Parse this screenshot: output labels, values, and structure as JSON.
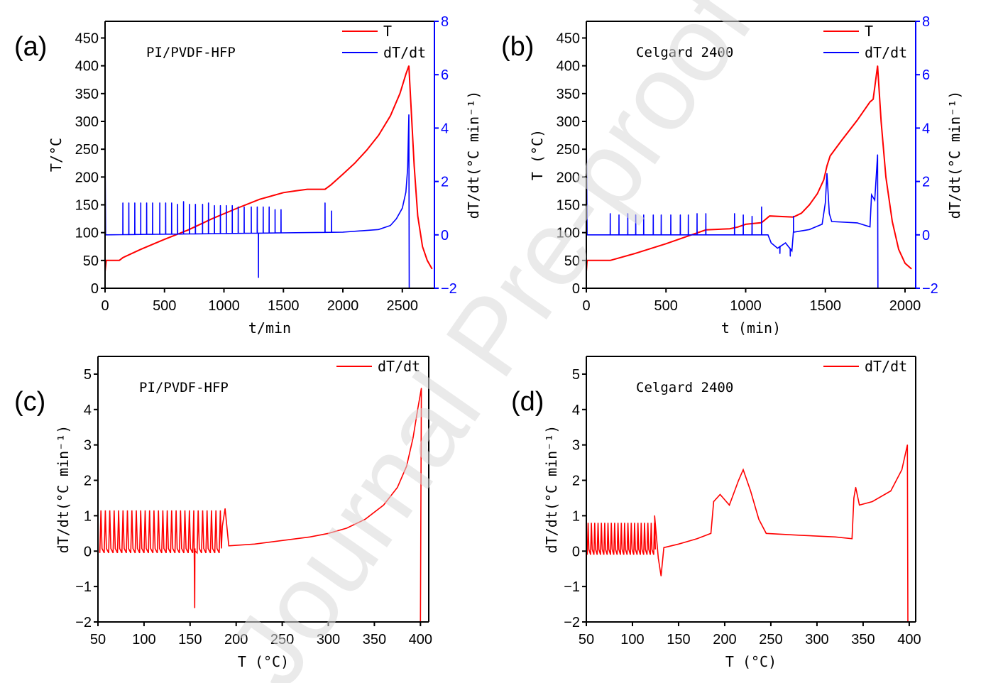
{
  "watermark": "Journal Pre-proof",
  "colors": {
    "T": "#ff0000",
    "dTdt": "#0000ff",
    "axis": "#000000",
    "watermark": "#d9d9d9"
  },
  "chart_data": [
    {
      "panel": "(a)",
      "type": "line",
      "annotation": "PI/PVDF-HFP",
      "xlabel": "t/min",
      "ylabel": "T/°C",
      "y2label": "dT/dt(°C min⁻¹)",
      "xlim": [
        0,
        2770
      ],
      "ylim": [
        0,
        480
      ],
      "y2lim": [
        -2,
        8
      ],
      "xticks": [
        0,
        500,
        1000,
        1500,
        2000,
        2500
      ],
      "yticks": [
        0,
        50,
        100,
        150,
        200,
        250,
        300,
        350,
        400,
        450
      ],
      "y2ticks": [
        -2,
        0,
        2,
        4,
        6,
        8
      ],
      "legend": {
        "position": "top-right",
        "entries": [
          "T",
          "dT/dt"
        ]
      },
      "series": [
        {
          "name": "T",
          "axis": "left",
          "color": "#ff0000",
          "points": [
            [
              0,
              30
            ],
            [
              10,
              50
            ],
            [
              120,
              50
            ],
            [
              150,
              55
            ],
            [
              300,
              70
            ],
            [
              500,
              88
            ],
            [
              700,
              105
            ],
            [
              900,
              125
            ],
            [
              1100,
              143
            ],
            [
              1300,
              160
            ],
            [
              1500,
              172
            ],
            [
              1600,
              175
            ],
            [
              1700,
              178
            ],
            [
              1850,
              178
            ],
            [
              1900,
              186
            ],
            [
              2000,
              205
            ],
            [
              2100,
              225
            ],
            [
              2200,
              248
            ],
            [
              2300,
              275
            ],
            [
              2400,
              310
            ],
            [
              2480,
              350
            ],
            [
              2530,
              385
            ],
            [
              2555,
              400
            ],
            [
              2570,
              340
            ],
            [
              2600,
              220
            ],
            [
              2630,
              130
            ],
            [
              2670,
              75
            ],
            [
              2710,
              50
            ],
            [
              2750,
              35
            ]
          ]
        },
        {
          "name": "dT/dt",
          "axis": "right",
          "color": "#0000ff",
          "points": [
            [
              0,
              3.2
            ],
            [
              5,
              0
            ],
            [
              2000,
              0.1
            ],
            [
              2300,
              0.2
            ],
            [
              2400,
              0.35
            ],
            [
              2450,
              0.6
            ],
            [
              2500,
              1.0
            ],
            [
              2530,
              1.6
            ],
            [
              2545,
              2.5
            ],
            [
              2555,
              4.5
            ],
            [
              2558,
              -2
            ]
          ],
          "spikes": [
            [
              150,
              1.2
            ],
            [
              200,
              1.2
            ],
            [
              250,
              1.2
            ],
            [
              300,
              1.2
            ],
            [
              350,
              1.2
            ],
            [
              400,
              1.2
            ],
            [
              460,
              1.2
            ],
            [
              510,
              1.2
            ],
            [
              560,
              1.2
            ],
            [
              610,
              1.15
            ],
            [
              660,
              1.25
            ],
            [
              710,
              1.15
            ],
            [
              760,
              1.15
            ],
            [
              820,
              1.15
            ],
            [
              870,
              1.2
            ],
            [
              920,
              1.1
            ],
            [
              970,
              1.1
            ],
            [
              1020,
              1.1
            ],
            [
              1070,
              1.1
            ],
            [
              1120,
              1.05
            ],
            [
              1170,
              1.05
            ],
            [
              1230,
              1.05
            ],
            [
              1280,
              1.05
            ],
            [
              1290,
              -1.6
            ],
            [
              1330,
              1.05
            ],
            [
              1380,
              1.05
            ],
            [
              1430,
              0.95
            ],
            [
              1480,
              0.95
            ],
            [
              1850,
              1.2
            ],
            [
              1905,
              0.9
            ]
          ]
        }
      ]
    },
    {
      "panel": "(b)",
      "type": "line",
      "annotation": "Celgard 2400",
      "xlabel": "t (min)",
      "ylabel": "T (°C)",
      "y2label": "dT/dt(°C min⁻¹)",
      "xlim": [
        0,
        2067
      ],
      "ylim": [
        0,
        480
      ],
      "y2lim": [
        -2,
        8
      ],
      "xticks": [
        0,
        500,
        1000,
        1500,
        2000
      ],
      "yticks": [
        0,
        50,
        100,
        150,
        200,
        250,
        300,
        350,
        400,
        450
      ],
      "y2ticks": [
        -2,
        0,
        2,
        4,
        6,
        8
      ],
      "legend": {
        "position": "top-right",
        "entries": [
          "T",
          "dT/dt"
        ]
      },
      "series": [
        {
          "name": "T",
          "axis": "left",
          "color": "#ff0000",
          "points": [
            [
              0,
              30
            ],
            [
              5,
              50
            ],
            [
              150,
              50
            ],
            [
              300,
              62
            ],
            [
              500,
              80
            ],
            [
              650,
              95
            ],
            [
              750,
              105
            ],
            [
              900,
              107
            ],
            [
              950,
              110
            ],
            [
              1000,
              115
            ],
            [
              1100,
              118
            ],
            [
              1150,
              130
            ],
            [
              1300,
              128
            ],
            [
              1350,
              135
            ],
            [
              1400,
              150
            ],
            [
              1450,
              170
            ],
            [
              1490,
              195
            ],
            [
              1510,
              220
            ],
            [
              1530,
              238
            ],
            [
              1600,
              265
            ],
            [
              1700,
              302
            ],
            [
              1780,
              335
            ],
            [
              1800,
              340
            ],
            [
              1828,
              400
            ],
            [
              1850,
              300
            ],
            [
              1880,
              200
            ],
            [
              1920,
              120
            ],
            [
              1960,
              70
            ],
            [
              2000,
              45
            ],
            [
              2040,
              35
            ]
          ]
        },
        {
          "name": "dT/dt",
          "axis": "right",
          "color": "#0000ff",
          "points": [
            [
              0,
              3.9
            ],
            [
              5,
              0
            ],
            [
              1140,
              0
            ],
            [
              1160,
              -0.3
            ],
            [
              1200,
              -0.5
            ],
            [
              1250,
              -0.3
            ],
            [
              1290,
              -0.6
            ],
            [
              1300,
              0.1
            ],
            [
              1400,
              0.2
            ],
            [
              1480,
              0.4
            ],
            [
              1500,
              1.2
            ],
            [
              1510,
              2.3
            ],
            [
              1525,
              0.8
            ],
            [
              1540,
              0.5
            ],
            [
              1700,
              0.45
            ],
            [
              1780,
              0.3
            ],
            [
              1790,
              1.5
            ],
            [
              1810,
              1.3
            ],
            [
              1828,
              3.0
            ],
            [
              1830,
              -2
            ]
          ],
          "spikes": [
            [
              150,
              0.8
            ],
            [
              205,
              0.75
            ],
            [
              260,
              0.8
            ],
            [
              310,
              0.75
            ],
            [
              360,
              0.75
            ],
            [
              420,
              0.75
            ],
            [
              470,
              0.75
            ],
            [
              530,
              0.75
            ],
            [
              590,
              0.75
            ],
            [
              640,
              0.75
            ],
            [
              695,
              0.8
            ],
            [
              750,
              0.8
            ],
            [
              930,
              0.8
            ],
            [
              985,
              0.75
            ],
            [
              1040,
              0.7
            ],
            [
              1100,
              1.05
            ],
            [
              1300,
              0.7
            ],
            [
              1215,
              -0.7
            ],
            [
              1280,
              -0.8
            ]
          ]
        }
      ]
    },
    {
      "panel": "(c)",
      "type": "line",
      "annotation": "PI/PVDF-HFP",
      "xlabel": "T (°C)",
      "ylabel": "dT/dt(°C min⁻¹)",
      "xlim": [
        50,
        409
      ],
      "ylim": [
        -2,
        5.5
      ],
      "xticks": [
        50,
        100,
        150,
        200,
        250,
        300,
        350,
        400
      ],
      "yticks": [
        -2,
        -1,
        0,
        1,
        2,
        3,
        4,
        5
      ],
      "legend": {
        "position": "top-right",
        "entries": [
          "dT/dt"
        ]
      },
      "series": [
        {
          "name": "dT/dt",
          "color": "#ff0000",
          "oscillation": {
            "range": [
              52,
              185
            ],
            "period": 4.8,
            "low": -0.05,
            "high": 1.15
          },
          "points": [
            [
              185,
              0.7
            ],
            [
              188,
              1.2
            ],
            [
              192,
              0.15
            ],
            [
              220,
              0.2
            ],
            [
              250,
              0.3
            ],
            [
              280,
              0.4
            ],
            [
              300,
              0.5
            ],
            [
              320,
              0.65
            ],
            [
              340,
              0.9
            ],
            [
              360,
              1.3
            ],
            [
              375,
              1.8
            ],
            [
              385,
              2.4
            ],
            [
              392,
              3.2
            ],
            [
              397,
              4.0
            ],
            [
              401,
              4.6
            ],
            [
              400,
              -2
            ]
          ],
          "spikes": [
            [
              155,
              -1.6
            ]
          ]
        }
      ]
    },
    {
      "panel": "(d)",
      "type": "line",
      "annotation": "Celgard 2400",
      "xlabel": "T (°C)",
      "ylabel": "dT/dt(°C min⁻¹)",
      "xlim": [
        50,
        407
      ],
      "ylim": [
        -2,
        5.5
      ],
      "xticks": [
        50,
        100,
        150,
        200,
        250,
        300,
        350,
        400
      ],
      "yticks": [
        -2,
        -1,
        0,
        1,
        2,
        3,
        4,
        5
      ],
      "legend": {
        "position": "top-right",
        "entries": [
          "dT/dt"
        ]
      },
      "series": [
        {
          "name": "dT/dt",
          "color": "#ff0000",
          "oscillation": {
            "range": [
              51,
              124
            ],
            "period": 3.6,
            "low": -0.1,
            "high": 0.8
          },
          "points": [
            [
              124,
              1.0
            ],
            [
              128,
              -0.2
            ],
            [
              131,
              -0.7
            ],
            [
              134,
              0.1
            ],
            [
              150,
              0.2
            ],
            [
              170,
              0.35
            ],
            [
              185,
              0.5
            ],
            [
              188,
              1.4
            ],
            [
              195,
              1.6
            ],
            [
              205,
              1.3
            ],
            [
              215,
              2.0
            ],
            [
              220,
              2.3
            ],
            [
              228,
              1.7
            ],
            [
              237,
              0.9
            ],
            [
              245,
              0.5
            ],
            [
              280,
              0.45
            ],
            [
              320,
              0.4
            ],
            [
              338,
              0.35
            ],
            [
              340,
              1.5
            ],
            [
              342,
              1.8
            ],
            [
              346,
              1.3
            ],
            [
              360,
              1.4
            ],
            [
              380,
              1.7
            ],
            [
              392,
              2.3
            ],
            [
              398,
              3.0
            ],
            [
              398.5,
              -2
            ]
          ]
        }
      ]
    }
  ]
}
